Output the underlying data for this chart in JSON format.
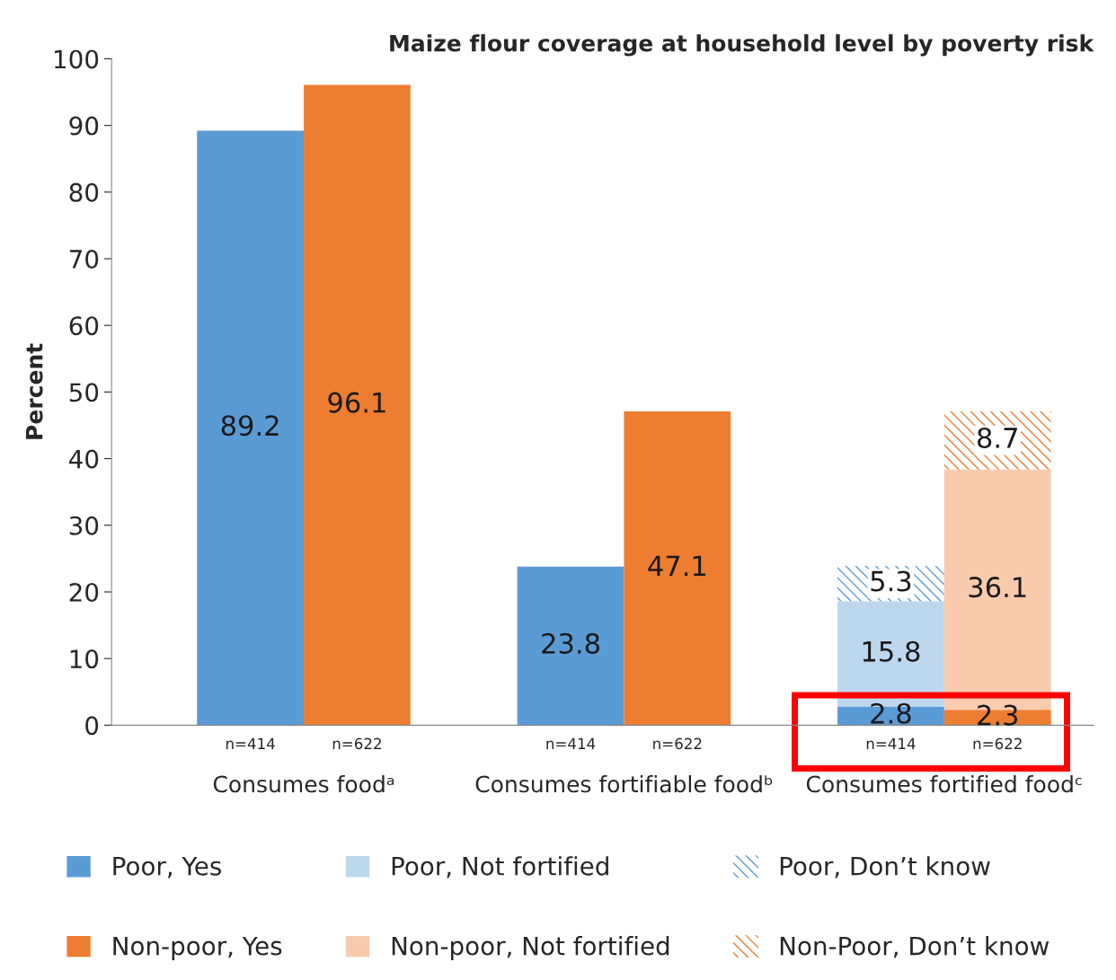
{
  "chart_data": {
    "type": "bar",
    "title": "Maize flour coverage at household level by poverty risk",
    "ylabel": "Percent",
    "categories": [
      "n=414",
      "n=622",
      null,
      "n=414",
      "n=622",
      null,
      "n=414",
      "n=622"
    ],
    "series": [
      {
        "name": "Poor, Yes",
        "color": "#5b9bd5",
        "values": [
          89.2,
          null,
          null,
          23.8,
          null,
          null,
          2.8,
          null
        ]
      },
      {
        "name": "Poor, Not fortified",
        "color": "#bdd7ee",
        "values": [
          null,
          null,
          null,
          null,
          null,
          null,
          15.8,
          null
        ]
      },
      {
        "name": "Poor, Don’t know",
        "color": "#5b9bd5",
        "values": [
          null,
          null,
          null,
          null,
          null,
          null,
          5.3,
          null
        ]
      },
      {
        "name": "Non-poor, Yes",
        "color": "#ed7d31",
        "values": [
          null,
          96.1,
          null,
          null,
          47.1,
          null,
          null,
          2.3
        ]
      },
      {
        "name": "Non-poor, Not fortified",
        "color": "#f8cbad",
        "values": [
          null,
          null,
          null,
          null,
          null,
          null,
          null,
          36.1
        ]
      },
      {
        "name": "Non-Poor, Don’t know",
        "color": "#ed7d31",
        "values": [
          null,
          null,
          null,
          null,
          null,
          null,
          null,
          8.7
        ]
      }
    ],
    "stacked": true,
    "data_labels": true,
    "ylim": [
      0,
      100
    ],
    "yticks": [
      0,
      10,
      20,
      30,
      40,
      50,
      60,
      70,
      80,
      90,
      100
    ],
    "annotations": [
      "Consumes foodᵃ",
      "Consumes fortifiable foodᵇ",
      "Consumes fortified foodᶜ"
    ],
    "grid": false,
    "legend": "bottom"
  }
}
